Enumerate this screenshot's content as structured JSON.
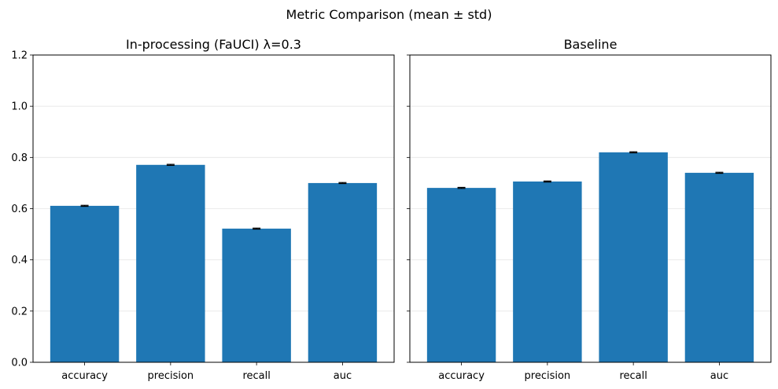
{
  "figure": {
    "suptitle": "Metric Comparison (mean ± std)"
  },
  "colors": {
    "bar": "#1f77b4",
    "errorbar": "#000000",
    "grid": "#e6e6e6",
    "axes": "#000000"
  },
  "chart_data": [
    {
      "type": "bar",
      "title": "In-processing (FaUCI) λ=0.3",
      "categories": [
        "accuracy",
        "precision",
        "recall",
        "auc"
      ],
      "values": [
        0.611,
        0.771,
        0.522,
        0.7
      ],
      "errors": [
        0.002,
        0.002,
        0.002,
        0.002
      ],
      "ylim": [
        0,
        1.2
      ],
      "yticks": [
        0.0,
        0.2,
        0.4,
        0.6,
        0.8,
        1.0,
        1.2
      ],
      "ytick_labels": [
        "0.0",
        "0.2",
        "0.4",
        "0.6",
        "0.8",
        "1.0",
        "1.2"
      ],
      "grid": "y",
      "show_ytick_labels": true
    },
    {
      "type": "bar",
      "title": "Baseline",
      "categories": [
        "accuracy",
        "precision",
        "recall",
        "auc"
      ],
      "values": [
        0.681,
        0.706,
        0.82,
        0.74
      ],
      "errors": [
        0.002,
        0.002,
        0.002,
        0.002
      ],
      "ylim": [
        0,
        1.2
      ],
      "yticks": [
        0.0,
        0.2,
        0.4,
        0.6,
        0.8,
        1.0,
        1.2
      ],
      "ytick_labels": [],
      "grid": "y",
      "show_ytick_labels": false
    }
  ]
}
